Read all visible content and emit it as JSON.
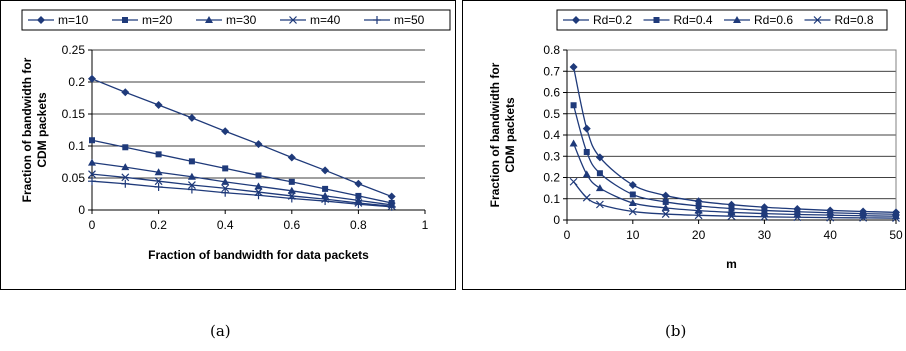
{
  "captions": [
    "(a)",
    "(b)"
  ],
  "chart_data": [
    {
      "type": "line",
      "xlabel": "Fraction of bandwidth for data packets",
      "ylabel": "Fraction of bandwidth for CDM packets",
      "xlim": [
        0,
        1
      ],
      "ylim": [
        0,
        0.25
      ],
      "xticks": [
        0,
        0.2,
        0.4,
        0.6,
        0.8,
        1
      ],
      "xtick_labels": [
        "0",
        "0.2",
        "0.4",
        "0.6",
        "0.8",
        "1"
      ],
      "yticks": [
        0,
        0.05,
        0.1,
        0.15,
        0.2,
        0.25
      ],
      "ytick_labels": [
        "0",
        "0.05",
        "0.1",
        "0.15",
        "0.2",
        "0.25"
      ],
      "grid": "horizontal",
      "legend": "top",
      "x": [
        0,
        0.1,
        0.2,
        0.3,
        0.4,
        0.5,
        0.6,
        0.7,
        0.8,
        0.9
      ],
      "series": [
        {
          "name": "m=10",
          "marker": "diamond",
          "values": [
            0.205,
            0.184,
            0.164,
            0.144,
            0.123,
            0.103,
            0.082,
            0.062,
            0.041,
            0.021
          ]
        },
        {
          "name": "m=20",
          "marker": "square",
          "values": [
            0.109,
            0.098,
            0.087,
            0.076,
            0.065,
            0.054,
            0.044,
            0.033,
            0.022,
            0.011
          ]
        },
        {
          "name": "m=30",
          "marker": "triangle",
          "values": [
            0.074,
            0.067,
            0.059,
            0.052,
            0.044,
            0.037,
            0.03,
            0.022,
            0.015,
            0.008
          ]
        },
        {
          "name": "m=40",
          "marker": "x",
          "values": [
            0.056,
            0.051,
            0.045,
            0.039,
            0.034,
            0.028,
            0.022,
            0.017,
            0.011,
            0.006
          ]
        },
        {
          "name": "m=50",
          "marker": "plus",
          "values": [
            0.045,
            0.041,
            0.036,
            0.032,
            0.027,
            0.023,
            0.018,
            0.014,
            0.009,
            0.005
          ]
        }
      ]
    },
    {
      "type": "line",
      "xlabel": "m",
      "ylabel": "Fraction of bandwidth for CDM packets",
      "xlim": [
        0,
        50
      ],
      "ylim": [
        0,
        0.8
      ],
      "xticks": [
        0,
        10,
        20,
        30,
        40,
        50
      ],
      "xtick_labels": [
        "0",
        "10",
        "20",
        "30",
        "40",
        "50"
      ],
      "yticks": [
        0,
        0.1,
        0.2,
        0.3,
        0.4,
        0.5,
        0.6,
        0.7,
        0.8
      ],
      "ytick_labels": [
        "0",
        "0.1",
        "0.2",
        "0.3",
        "0.4",
        "0.5",
        "0.6",
        "0.7",
        "0.8"
      ],
      "grid": "horizontal",
      "legend": "top",
      "x": [
        1,
        3,
        5,
        10,
        15,
        20,
        25,
        30,
        35,
        40,
        45,
        50
      ],
      "series": [
        {
          "name": "Rd=0.2",
          "marker": "diamond",
          "values": [
            0.72,
            0.43,
            0.295,
            0.165,
            0.115,
            0.088,
            0.072,
            0.06,
            0.052,
            0.045,
            0.04,
            0.036
          ]
        },
        {
          "name": "Rd=0.4",
          "marker": "square",
          "values": [
            0.54,
            0.32,
            0.22,
            0.12,
            0.085,
            0.066,
            0.054,
            0.045,
            0.039,
            0.034,
            0.03,
            0.027
          ]
        },
        {
          "name": "Rd=0.6",
          "marker": "triangle",
          "values": [
            0.36,
            0.215,
            0.15,
            0.08,
            0.057,
            0.044,
            0.036,
            0.03,
            0.026,
            0.023,
            0.02,
            0.018
          ]
        },
        {
          "name": "Rd=0.8",
          "marker": "x",
          "values": [
            0.18,
            0.105,
            0.073,
            0.04,
            0.028,
            0.022,
            0.018,
            0.015,
            0.013,
            0.011,
            0.01,
            0.009
          ]
        }
      ]
    }
  ]
}
